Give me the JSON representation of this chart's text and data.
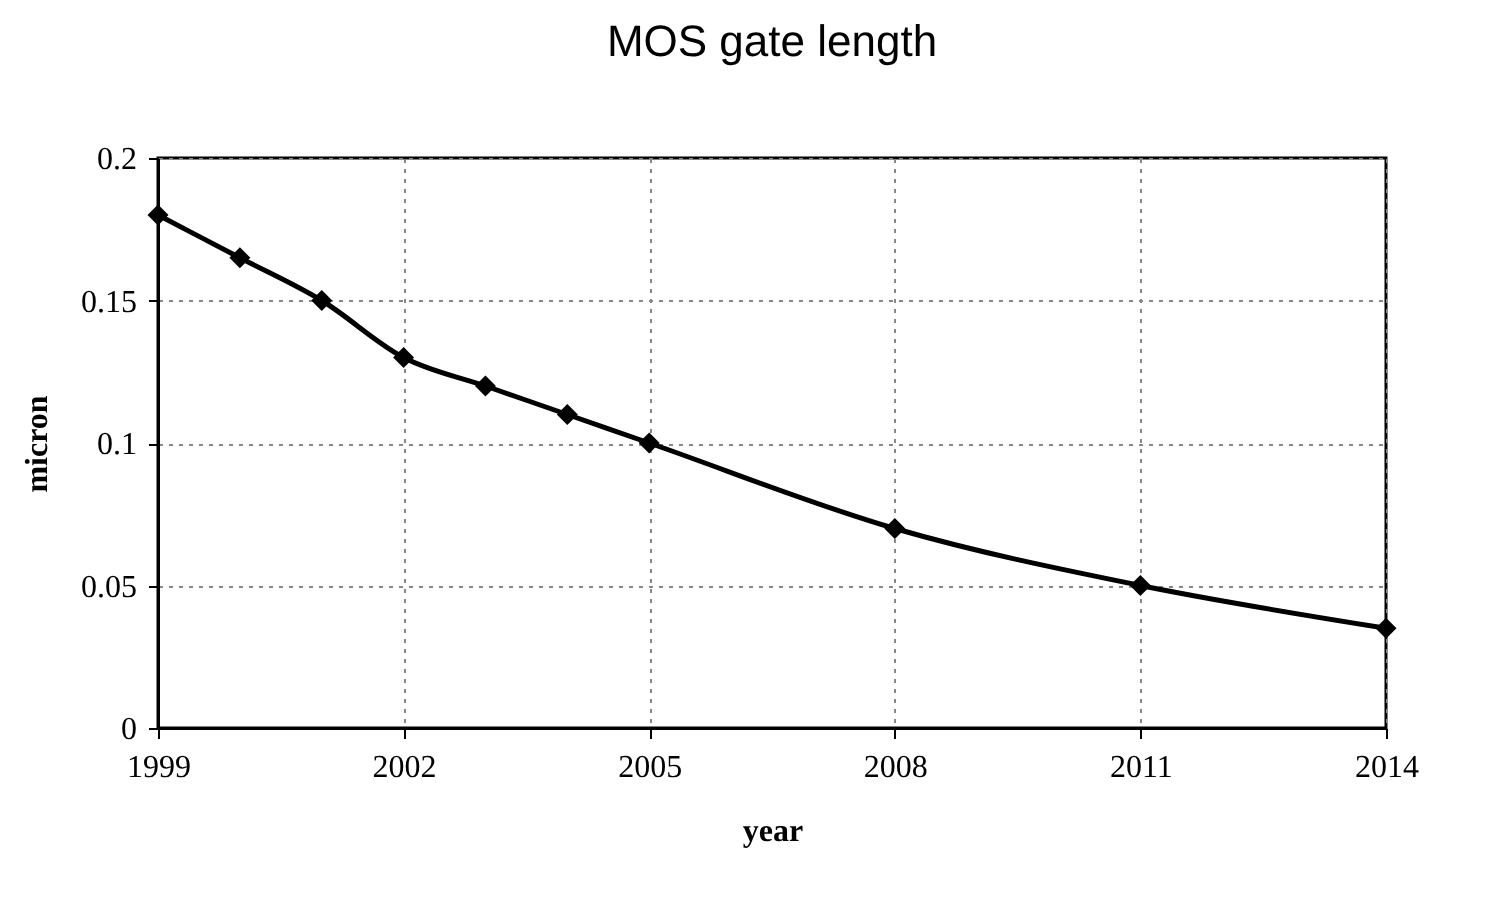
{
  "chart_data": {
    "type": "line",
    "title": "MOS gate length",
    "xlabel": "year",
    "ylabel": "micron",
    "x": [
      1999,
      2000,
      2001,
      2002,
      2003,
      2004,
      2005,
      2008,
      2011,
      2014
    ],
    "series": [
      {
        "color": "#000000",
        "values": [
          0.18,
          0.165,
          0.15,
          0.13,
          0.12,
          0.11,
          0.1,
          0.07,
          0.05,
          0.035
        ]
      }
    ],
    "xlim": [
      1999,
      2014
    ],
    "xticks": [
      1999,
      2002,
      2005,
      2008,
      2011,
      2014
    ],
    "ylim": [
      0,
      0.2
    ],
    "yticks": [
      0,
      0.05,
      0.1,
      0.15,
      0.2
    ],
    "grid": true,
    "marker": "diamond",
    "line_style": "solid"
  }
}
